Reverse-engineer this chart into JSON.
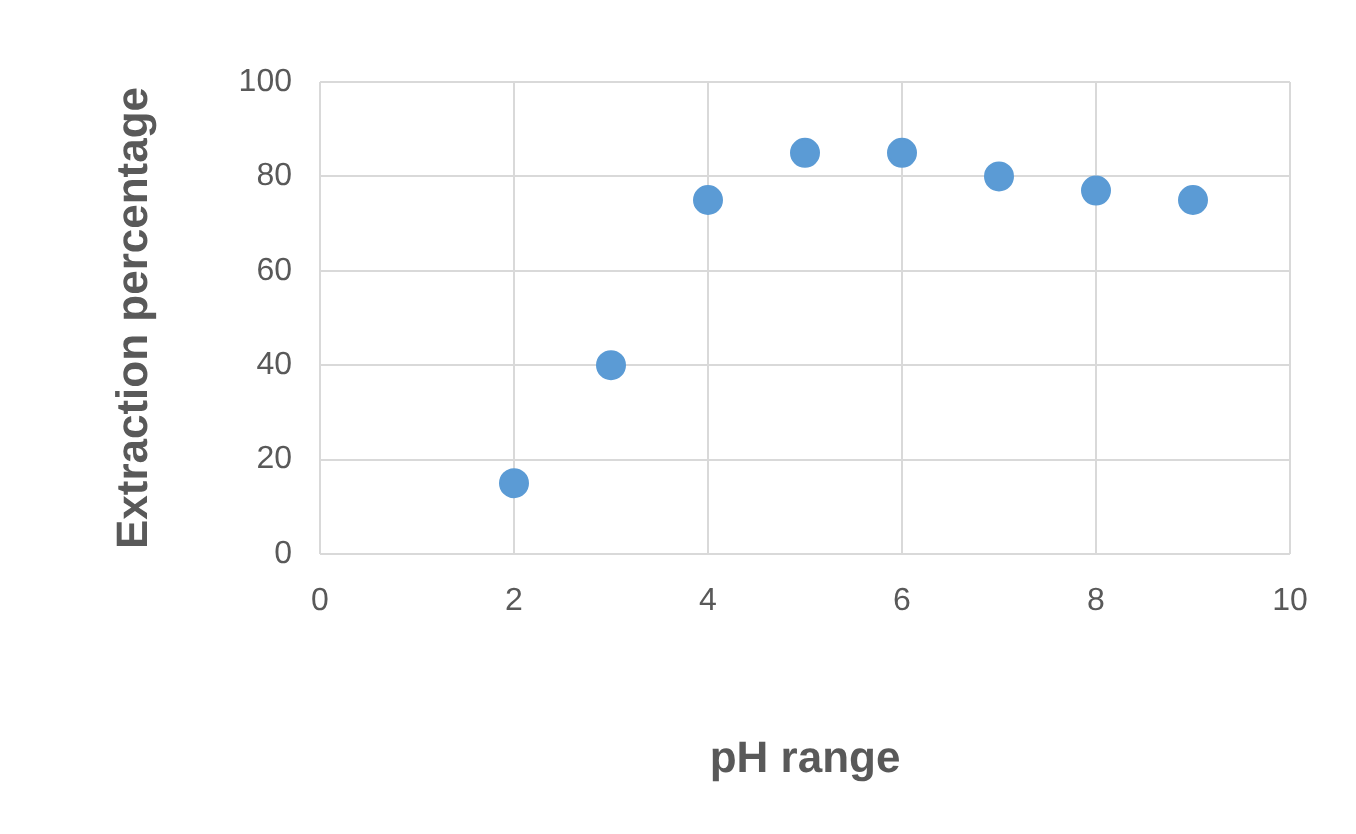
{
  "chart_data": {
    "type": "scatter",
    "xlabel": "pH range",
    "ylabel": "Extraction percentage",
    "series": [
      {
        "color": "#5b9bd5",
        "x": [
          2,
          3,
          4,
          5,
          6,
          7,
          8,
          9
        ],
        "values": [
          15,
          40,
          75,
          85,
          85,
          80,
          77,
          75
        ]
      }
    ],
    "xlim": [
      0,
      10
    ],
    "xticks": [
      0,
      2,
      4,
      6,
      8,
      10
    ],
    "ylim": [
      0,
      100
    ],
    "yticks": [
      0,
      20,
      40,
      60,
      80,
      100
    ],
    "grid": true,
    "legend": false,
    "marker": "circle"
  }
}
